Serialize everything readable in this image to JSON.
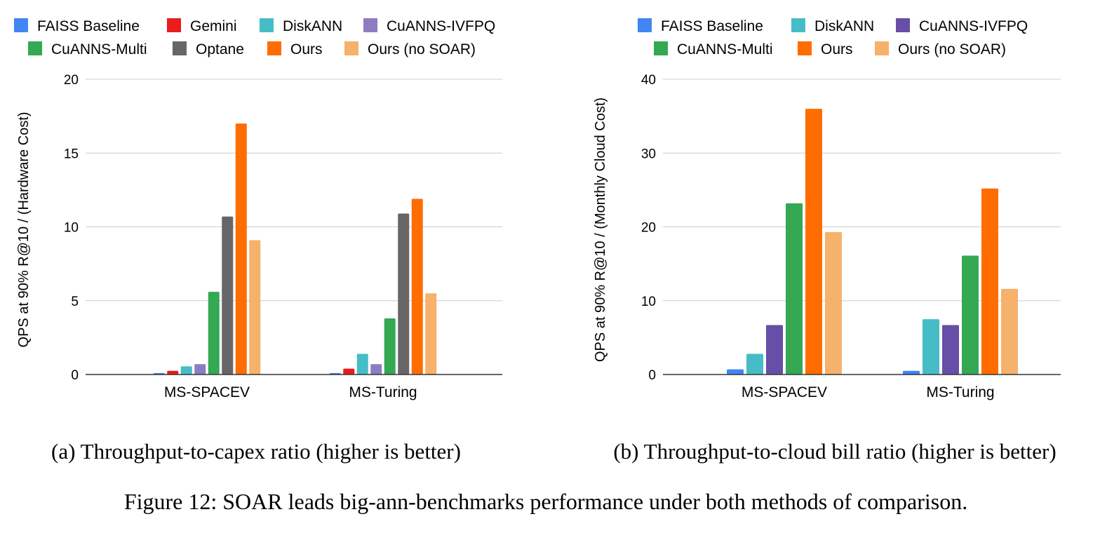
{
  "figure": {
    "caption": "Figure 12: SOAR leads big-ann-benchmarks performance under both methods of comparison."
  },
  "colors": {
    "grid": "#cccccc",
    "axis": "#333333",
    "text": "#000000"
  },
  "chart_data": [
    {
      "type": "bar",
      "subcaption": "(a) Throughput-to-capex ratio (higher is better)",
      "ylabel": "QPS at 90% R@10 / (Hardware Cost)",
      "xlabel": "",
      "ylim": [
        0,
        20
      ],
      "yticks": [
        0,
        5,
        10,
        15,
        20
      ],
      "grid": true,
      "legend_position": "top",
      "categories": [
        "MS-SPACEV",
        "MS-Turing"
      ],
      "series": [
        {
          "name": "FAISS Baseline",
          "color": "#4285f4",
          "values": [
            0.1,
            0.1
          ]
        },
        {
          "name": "Gemini",
          "color": "#ea1c1c",
          "values": [
            0.25,
            0.4
          ]
        },
        {
          "name": "DiskANN",
          "color": "#46bdc6",
          "values": [
            0.55,
            1.4
          ]
        },
        {
          "name": "CuANNS-IVFPQ",
          "color": "#8e7cc3",
          "values": [
            0.7,
            0.7
          ]
        },
        {
          "name": "CuANNS-Multi",
          "color": "#34a853",
          "values": [
            5.6,
            3.8
          ]
        },
        {
          "name": "Optane",
          "color": "#666666",
          "values": [
            10.7,
            10.9
          ]
        },
        {
          "name": "Ours",
          "color": "#ff6d01",
          "values": [
            17.0,
            11.9
          ]
        },
        {
          "name": "Ours (no SOAR)",
          "color": "#f6b26b",
          "values": [
            9.1,
            5.5
          ]
        }
      ]
    },
    {
      "type": "bar",
      "subcaption": "(b) Throughput-to-cloud bill ratio (higher is better)",
      "ylabel": "QPS at 90% R@10 / (Monthly Cloud Cost)",
      "xlabel": "",
      "ylim": [
        0,
        40
      ],
      "yticks": [
        0,
        10,
        20,
        30,
        40
      ],
      "grid": true,
      "legend_position": "top",
      "categories": [
        "MS-SPACEV",
        "MS-Turing"
      ],
      "series": [
        {
          "name": "FAISS Baseline",
          "color": "#4285f4",
          "values": [
            0.7,
            0.5
          ]
        },
        {
          "name": "DiskANN",
          "color": "#46bdc6",
          "values": [
            2.8,
            7.5
          ]
        },
        {
          "name": "CuANNS-IVFPQ",
          "color": "#674ea7",
          "values": [
            6.7,
            6.7
          ]
        },
        {
          "name": "CuANNS-Multi",
          "color": "#34a853",
          "values": [
            23.2,
            16.1
          ]
        },
        {
          "name": "Ours",
          "color": "#ff6d01",
          "values": [
            36.0,
            25.2
          ]
        },
        {
          "name": "Ours (no SOAR)",
          "color": "#f6b26b",
          "values": [
            19.3,
            11.6
          ]
        }
      ]
    }
  ]
}
